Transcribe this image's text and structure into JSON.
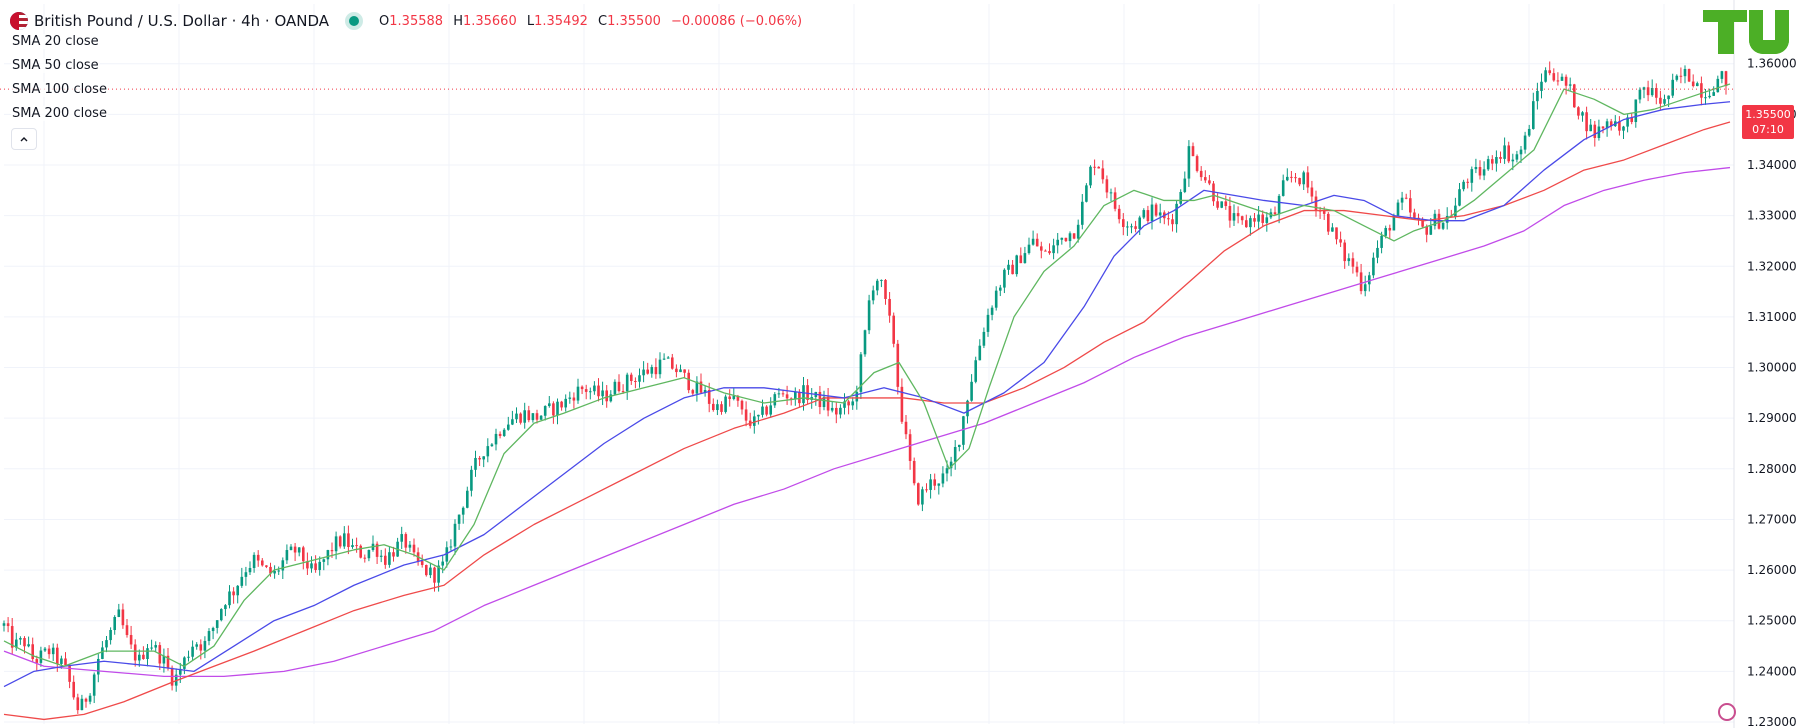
{
  "header": {
    "symbol": "British Pound / U.S. Dollar · 4h · OANDA",
    "open_label": "O",
    "open": "1.35588",
    "high_label": "H",
    "high": "1.35660",
    "low_label": "L",
    "low": "1.35492",
    "close_label": "C",
    "close": "1.35500",
    "change": "−0.00086 (−0.06%)"
  },
  "legend": [
    {
      "name": "SMA",
      "params": "20 close"
    },
    {
      "name": "SMA",
      "params": "50 close"
    },
    {
      "name": "SMA",
      "params": "100 close"
    },
    {
      "name": "SMA",
      "params": "200 close"
    }
  ],
  "last_price": {
    "price": "1.35500",
    "countdown": "07:10",
    "value": 1.355
  },
  "icons": {
    "flag": "gbp-usd-flag-icon",
    "collapse": "chevron-up-icon",
    "logo": "tradingview-logo-icon",
    "corner": "tradingview-circle-icon"
  },
  "colors": {
    "up": "#089981",
    "down": "#f23645",
    "sma20": "#5fb760",
    "sma50": "#4a4ae8",
    "sma100": "#ef4a4a",
    "sma200": "#c14be9",
    "price_label": "#f23645",
    "logo": "#4CAF26"
  },
  "chart_data": {
    "type": "candlestick",
    "symbol": "GBPUSD",
    "interval": "4h",
    "y_ticks": [
      "1.36000",
      "1.35000",
      "1.34000",
      "1.33000",
      "1.32000",
      "1.31000",
      "1.30000",
      "1.29000",
      "1.28000",
      "1.27000",
      "1.26000",
      "1.25000",
      "1.24000",
      "1.23000"
    ],
    "ylim": [
      1.2296,
      1.3718
    ],
    "grid": true,
    "close_path": [
      [
        0,
        1.249
      ],
      [
        10,
        1.245
      ],
      [
        20,
        1.246
      ],
      [
        30,
        1.242
      ],
      [
        45,
        1.244
      ],
      [
        60,
        1.241
      ],
      [
        75,
        1.232
      ],
      [
        85,
        1.236
      ],
      [
        95,
        1.243
      ],
      [
        105,
        1.247
      ],
      [
        115,
        1.251
      ],
      [
        125,
        1.245
      ],
      [
        135,
        1.242
      ],
      [
        145,
        1.246
      ],
      [
        160,
        1.242
      ],
      [
        170,
        1.238
      ],
      [
        180,
        1.242
      ],
      [
        190,
        1.246
      ],
      [
        200,
        1.245
      ],
      [
        210,
        1.249
      ],
      [
        220,
        1.254
      ],
      [
        230,
        1.256
      ],
      [
        240,
        1.26
      ],
      [
        250,
        1.262
      ],
      [
        260,
        1.26
      ],
      [
        270,
        1.259
      ],
      [
        280,
        1.262
      ],
      [
        290,
        1.264
      ],
      [
        300,
        1.262
      ],
      [
        310,
        1.259
      ],
      [
        320,
        1.262
      ],
      [
        330,
        1.265
      ],
      [
        340,
        1.266
      ],
      [
        350,
        1.264
      ],
      [
        360,
        1.263
      ],
      [
        370,
        1.265
      ],
      [
        380,
        1.262
      ],
      [
        390,
        1.264
      ],
      [
        400,
        1.266
      ],
      [
        410,
        1.262
      ],
      [
        420,
        1.26
      ],
      [
        430,
        1.259
      ],
      [
        440,
        1.261
      ],
      [
        450,
        1.268
      ],
      [
        460,
        1.274
      ],
      [
        470,
        1.28
      ],
      [
        480,
        1.284
      ],
      [
        490,
        1.286
      ],
      [
        500,
        1.289
      ],
      [
        510,
        1.29
      ],
      [
        520,
        1.291
      ],
      [
        530,
        1.29
      ],
      [
        540,
        1.291
      ],
      [
        550,
        1.292
      ],
      [
        560,
        1.293
      ],
      [
        570,
        1.295
      ],
      [
        580,
        1.296
      ],
      [
        590,
        1.295
      ],
      [
        600,
        1.294
      ],
      [
        610,
        1.296
      ],
      [
        620,
        1.297
      ],
      [
        630,
        1.298
      ],
      [
        640,
        1.299
      ],
      [
        650,
        1.3
      ],
      [
        660,
        1.301
      ],
      [
        670,
        1.3
      ],
      [
        680,
        1.298
      ],
      [
        690,
        1.296
      ],
      [
        700,
        1.295
      ],
      [
        710,
        1.292
      ],
      [
        720,
        1.293
      ],
      [
        730,
        1.294
      ],
      [
        740,
        1.29
      ],
      [
        750,
        1.289
      ],
      [
        760,
        1.291
      ],
      [
        770,
        1.294
      ],
      [
        780,
        1.295
      ],
      [
        790,
        1.294
      ],
      [
        800,
        1.295
      ],
      [
        810,
        1.294
      ],
      [
        820,
        1.293
      ],
      [
        830,
        1.291
      ],
      [
        840,
        1.292
      ],
      [
        850,
        1.293
      ],
      [
        860,
        1.305
      ],
      [
        867,
        1.316
      ],
      [
        875,
        1.318
      ],
      [
        882,
        1.312
      ],
      [
        890,
        1.305
      ],
      [
        895,
        1.294
      ],
      [
        900,
        1.288
      ],
      [
        905,
        1.282
      ],
      [
        910,
        1.276
      ],
      [
        915,
        1.274
      ],
      [
        925,
        1.277
      ],
      [
        935,
        1.278
      ],
      [
        945,
        1.279
      ],
      [
        950,
        1.283
      ],
      [
        955,
        1.286
      ],
      [
        962,
        1.293
      ],
      [
        970,
        1.3
      ],
      [
        980,
        1.308
      ],
      [
        990,
        1.314
      ],
      [
        1000,
        1.318
      ],
      [
        1010,
        1.32
      ],
      [
        1020,
        1.323
      ],
      [
        1030,
        1.325
      ],
      [
        1040,
        1.322
      ],
      [
        1050,
        1.324
      ],
      [
        1060,
        1.326
      ],
      [
        1070,
        1.327
      ],
      [
        1080,
        1.333
      ],
      [
        1085,
        1.338
      ],
      [
        1090,
        1.341
      ],
      [
        1095,
        1.34
      ],
      [
        1102,
        1.336
      ],
      [
        1110,
        1.332
      ],
      [
        1120,
        1.329
      ],
      [
        1130,
        1.328
      ],
      [
        1140,
        1.33
      ],
      [
        1150,
        1.331
      ],
      [
        1160,
        1.329
      ],
      [
        1170,
        1.33
      ],
      [
        1180,
        1.338
      ],
      [
        1185,
        1.343
      ],
      [
        1190,
        1.341
      ],
      [
        1200,
        1.338
      ],
      [
        1210,
        1.334
      ],
      [
        1220,
        1.331
      ],
      [
        1230,
        1.329
      ],
      [
        1240,
        1.328
      ],
      [
        1250,
        1.33
      ],
      [
        1260,
        1.329
      ],
      [
        1270,
        1.33
      ],
      [
        1280,
        1.336
      ],
      [
        1290,
        1.338
      ],
      [
        1300,
        1.337
      ],
      [
        1310,
        1.333
      ],
      [
        1320,
        1.33
      ],
      [
        1330,
        1.326
      ],
      [
        1340,
        1.322
      ],
      [
        1350,
        1.32
      ],
      [
        1358,
        1.316
      ],
      [
        1365,
        1.319
      ],
      [
        1372,
        1.323
      ],
      [
        1380,
        1.326
      ],
      [
        1390,
        1.33
      ],
      [
        1400,
        1.333
      ],
      [
        1410,
        1.329
      ],
      [
        1420,
        1.327
      ],
      [
        1430,
        1.329
      ],
      [
        1440,
        1.329
      ],
      [
        1450,
        1.331
      ],
      [
        1460,
        1.337
      ],
      [
        1470,
        1.338
      ],
      [
        1480,
        1.339
      ],
      [
        1490,
        1.342
      ],
      [
        1500,
        1.343
      ],
      [
        1510,
        1.341
      ],
      [
        1520,
        1.344
      ],
      [
        1530,
        1.352
      ],
      [
        1537,
        1.357
      ],
      [
        1545,
        1.359
      ],
      [
        1555,
        1.357
      ],
      [
        1565,
        1.355
      ],
      [
        1572,
        1.352
      ],
      [
        1580,
        1.349
      ],
      [
        1590,
        1.346
      ],
      [
        1600,
        1.348
      ],
      [
        1610,
        1.349
      ],
      [
        1620,
        1.347
      ],
      [
        1630,
        1.351
      ],
      [
        1640,
        1.355
      ],
      [
        1650,
        1.354
      ],
      [
        1660,
        1.352
      ],
      [
        1670,
        1.356
      ],
      [
        1680,
        1.358
      ],
      [
        1690,
        1.357
      ],
      [
        1700,
        1.354
      ],
      [
        1710,
        1.356
      ],
      [
        1720,
        1.3574
      ],
      [
        1726,
        1.355
      ]
    ],
    "sma20": [
      [
        0,
        1.246
      ],
      [
        30,
        1.243
      ],
      [
        60,
        1.241
      ],
      [
        100,
        1.244
      ],
      [
        150,
        1.244
      ],
      [
        180,
        1.241
      ],
      [
        210,
        1.245
      ],
      [
        240,
        1.254
      ],
      [
        270,
        1.26
      ],
      [
        310,
        1.262
      ],
      [
        350,
        1.264
      ],
      [
        380,
        1.265
      ],
      [
        410,
        1.263
      ],
      [
        440,
        1.26
      ],
      [
        470,
        1.269
      ],
      [
        500,
        1.283
      ],
      [
        530,
        1.289
      ],
      [
        560,
        1.291
      ],
      [
        600,
        1.294
      ],
      [
        640,
        1.296
      ],
      [
        680,
        1.298
      ],
      [
        720,
        1.295
      ],
      [
        760,
        1.293
      ],
      [
        800,
        1.294
      ],
      [
        840,
        1.293
      ],
      [
        870,
        1.299
      ],
      [
        895,
        1.301
      ],
      [
        920,
        1.293
      ],
      [
        945,
        1.28
      ],
      [
        965,
        1.284
      ],
      [
        985,
        1.296
      ],
      [
        1010,
        1.31
      ],
      [
        1040,
        1.319
      ],
      [
        1070,
        1.324
      ],
      [
        1100,
        1.332
      ],
      [
        1130,
        1.335
      ],
      [
        1160,
        1.333
      ],
      [
        1190,
        1.333
      ],
      [
        1210,
        1.334
      ],
      [
        1240,
        1.332
      ],
      [
        1270,
        1.33
      ],
      [
        1300,
        1.332
      ],
      [
        1330,
        1.331
      ],
      [
        1360,
        1.328
      ],
      [
        1390,
        1.325
      ],
      [
        1410,
        1.327
      ],
      [
        1440,
        1.329
      ],
      [
        1470,
        1.333
      ],
      [
        1500,
        1.338
      ],
      [
        1530,
        1.343
      ],
      [
        1560,
        1.355
      ],
      [
        1590,
        1.353
      ],
      [
        1620,
        1.35
      ],
      [
        1650,
        1.351
      ],
      [
        1680,
        1.353
      ],
      [
        1710,
        1.355
      ],
      [
        1726,
        1.356
      ]
    ],
    "sma50": [
      [
        0,
        1.237
      ],
      [
        30,
        1.24
      ],
      [
        60,
        1.241
      ],
      [
        100,
        1.242
      ],
      [
        150,
        1.241
      ],
      [
        190,
        1.24
      ],
      [
        230,
        1.245
      ],
      [
        270,
        1.25
      ],
      [
        310,
        1.253
      ],
      [
        350,
        1.257
      ],
      [
        400,
        1.261
      ],
      [
        440,
        1.263
      ],
      [
        480,
        1.267
      ],
      [
        520,
        1.273
      ],
      [
        560,
        1.279
      ],
      [
        600,
        1.285
      ],
      [
        640,
        1.29
      ],
      [
        680,
        1.294
      ],
      [
        720,
        1.296
      ],
      [
        760,
        1.296
      ],
      [
        800,
        1.295
      ],
      [
        840,
        1.294
      ],
      [
        880,
        1.296
      ],
      [
        920,
        1.294
      ],
      [
        960,
        1.291
      ],
      [
        1000,
        1.295
      ],
      [
        1040,
        1.301
      ],
      [
        1080,
        1.312
      ],
      [
        1110,
        1.322
      ],
      [
        1140,
        1.328
      ],
      [
        1170,
        1.331
      ],
      [
        1200,
        1.335
      ],
      [
        1230,
        1.334
      ],
      [
        1260,
        1.333
      ],
      [
        1300,
        1.332
      ],
      [
        1330,
        1.334
      ],
      [
        1360,
        1.333
      ],
      [
        1390,
        1.33
      ],
      [
        1430,
        1.329
      ],
      [
        1460,
        1.329
      ],
      [
        1500,
        1.332
      ],
      [
        1540,
        1.339
      ],
      [
        1580,
        1.345
      ],
      [
        1620,
        1.349
      ],
      [
        1660,
        1.351
      ],
      [
        1700,
        1.352
      ],
      [
        1726,
        1.3525
      ]
    ],
    "sma100": [
      [
        0,
        1.2315
      ],
      [
        40,
        1.2305
      ],
      [
        80,
        1.2315
      ],
      [
        120,
        1.234
      ],
      [
        170,
        1.238
      ],
      [
        210,
        1.241
      ],
      [
        250,
        1.244
      ],
      [
        300,
        1.248
      ],
      [
        350,
        1.252
      ],
      [
        400,
        1.255
      ],
      [
        440,
        1.257
      ],
      [
        480,
        1.263
      ],
      [
        530,
        1.269
      ],
      [
        580,
        1.274
      ],
      [
        630,
        1.279
      ],
      [
        680,
        1.284
      ],
      [
        730,
        1.288
      ],
      [
        780,
        1.291
      ],
      [
        820,
        1.294
      ],
      [
        860,
        1.294
      ],
      [
        900,
        1.294
      ],
      [
        940,
        1.293
      ],
      [
        980,
        1.293
      ],
      [
        1020,
        1.296
      ],
      [
        1060,
        1.3
      ],
      [
        1100,
        1.305
      ],
      [
        1140,
        1.309
      ],
      [
        1180,
        1.316
      ],
      [
        1220,
        1.323
      ],
      [
        1260,
        1.328
      ],
      [
        1300,
        1.331
      ],
      [
        1340,
        1.331
      ],
      [
        1380,
        1.33
      ],
      [
        1420,
        1.329
      ],
      [
        1460,
        1.33
      ],
      [
        1500,
        1.332
      ],
      [
        1540,
        1.335
      ],
      [
        1580,
        1.339
      ],
      [
        1620,
        1.341
      ],
      [
        1660,
        1.344
      ],
      [
        1700,
        1.347
      ],
      [
        1726,
        1.3485
      ]
    ],
    "sma200": [
      [
        0,
        1.244
      ],
      [
        40,
        1.241
      ],
      [
        100,
        1.24
      ],
      [
        160,
        1.239
      ],
      [
        220,
        1.239
      ],
      [
        280,
        1.24
      ],
      [
        330,
        1.242
      ],
      [
        380,
        1.245
      ],
      [
        430,
        1.248
      ],
      [
        480,
        1.253
      ],
      [
        530,
        1.257
      ],
      [
        580,
        1.261
      ],
      [
        630,
        1.265
      ],
      [
        680,
        1.269
      ],
      [
        730,
        1.273
      ],
      [
        780,
        1.276
      ],
      [
        830,
        1.28
      ],
      [
        880,
        1.283
      ],
      [
        930,
        1.286
      ],
      [
        980,
        1.289
      ],
      [
        1030,
        1.293
      ],
      [
        1080,
        1.297
      ],
      [
        1130,
        1.302
      ],
      [
        1180,
        1.306
      ],
      [
        1230,
        1.309
      ],
      [
        1280,
        1.312
      ],
      [
        1330,
        1.315
      ],
      [
        1380,
        1.318
      ],
      [
        1430,
        1.321
      ],
      [
        1480,
        1.324
      ],
      [
        1520,
        1.327
      ],
      [
        1560,
        1.332
      ],
      [
        1600,
        1.335
      ],
      [
        1640,
        1.337
      ],
      [
        1680,
        1.3385
      ],
      [
        1726,
        1.3395
      ]
    ]
  }
}
